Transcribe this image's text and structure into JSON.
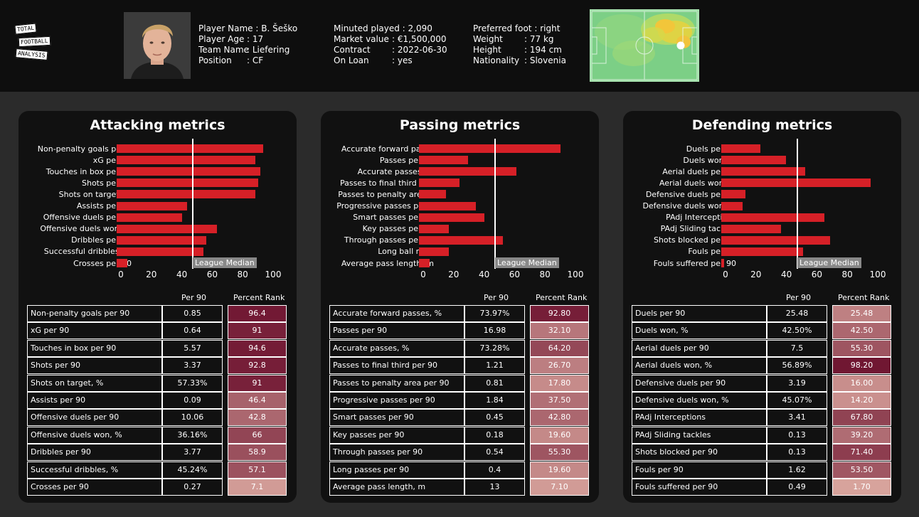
{
  "logo": {
    "lines": [
      "TOTAL",
      "FOOTBALL",
      "ANALYSIS"
    ]
  },
  "player": {
    "col1": [
      {
        "label": "Player Name :",
        "value": "B. Šeško"
      },
      {
        "label": "Player Age",
        "value": ": 17"
      },
      {
        "label": "Team Name",
        "value": ": Liefering"
      },
      {
        "label": "Position",
        "value": ": CF"
      }
    ],
    "col2": [
      {
        "label": "Minuted played :",
        "value": "2,090"
      },
      {
        "label": "Market value",
        "value": ": €1,500,000"
      },
      {
        "label": "Contract",
        "value": ": 2022-06-30"
      },
      {
        "label": "On Loan",
        "value": ": yes"
      }
    ],
    "col3": [
      {
        "label": "Preferred foot :",
        "value": "right"
      },
      {
        "label": "Weight",
        "value": ": 77 kg"
      },
      {
        "label": "Height",
        "value": ": 194 cm"
      },
      {
        "label": "Nationality",
        "value": ": Slovenia"
      }
    ]
  },
  "colors": {
    "bar": "#d62027",
    "background": "#2b2b2b",
    "panel": "#111111",
    "rank_low": "#d9a59e",
    "rank_high": "#6e1430"
  },
  "common": {
    "league_median_label": "League Median",
    "median_value": 50,
    "ticks": [
      "0",
      "20",
      "40",
      "60",
      "80",
      "100"
    ],
    "col_per90": "Per 90",
    "col_rank": "Percent Rank"
  },
  "panels": [
    {
      "title": "Attacking metrics",
      "chart_labels": [
        "Non-penalty goals per ..",
        "xG per 90",
        "Touches in box per 90",
        "Shots per 90",
        "Shots on target, %",
        "Assists per 90",
        "Offensive duels per 90",
        "Offensive duels won, %",
        "Dribbles per 90",
        "Successful dribbles, %",
        "Crosses per 90"
      ],
      "rows": [
        {
          "name": "Non-penalty goals per 90",
          "per90": "0.85",
          "rank": "96.4",
          "pct": 96.4
        },
        {
          "name": "xG per 90",
          "per90": "0.64",
          "rank": "91",
          "pct": 91
        },
        {
          "name": "Touches in box per 90",
          "per90": "5.57",
          "rank": "94.6",
          "pct": 94.6
        },
        {
          "name": "Shots per 90",
          "per90": "3.37",
          "rank": "92.8",
          "pct": 92.8
        },
        {
          "name": "Shots on target, %",
          "per90": "57.33%",
          "rank": "91",
          "pct": 91
        },
        {
          "name": "Assists per 90",
          "per90": "0.09",
          "rank": "46.4",
          "pct": 46.4
        },
        {
          "name": "Offensive duels per 90",
          "per90": "10.06",
          "rank": "42.8",
          "pct": 42.8
        },
        {
          "name": "Offensive duels won, %",
          "per90": "36.16%",
          "rank": "66",
          "pct": 66
        },
        {
          "name": "Dribbles per 90",
          "per90": "3.77",
          "rank": "58.9",
          "pct": 58.9
        },
        {
          "name": "Successful dribbles, %",
          "per90": "45.24%",
          "rank": "57.1",
          "pct": 57.1
        },
        {
          "name": "Crosses per 90",
          "per90": "0.27",
          "rank": "7.1",
          "pct": 7.1
        }
      ]
    },
    {
      "title": "Passing metrics",
      "chart_labels": [
        "Accurate forward pass..",
        "Passes per 90",
        "Accurate passes, %",
        "Passes to final third pe..",
        "Passes to penalty area ..",
        "Progressive passes per ..",
        "Smart passes per 90",
        "Key passes per 90",
        "Through passes per 90",
        "Long ball ratio",
        "Average pass length, m"
      ],
      "rows": [
        {
          "name": "Accurate forward passes, %",
          "per90": "73.97%",
          "rank": "92.80",
          "pct": 92.8
        },
        {
          "name": "Passes per 90",
          "per90": "16.98",
          "rank": "32.10",
          "pct": 32.1
        },
        {
          "name": "Accurate passes, %",
          "per90": "73.28%",
          "rank": "64.20",
          "pct": 64.2
        },
        {
          "name": "Passes to final third per 90",
          "per90": "1.21",
          "rank": "26.70",
          "pct": 26.7
        },
        {
          "name": "Passes to penalty area per 90",
          "per90": "0.81",
          "rank": "17.80",
          "pct": 17.8
        },
        {
          "name": "Progressive passes per 90",
          "per90": "1.84",
          "rank": "37.50",
          "pct": 37.5
        },
        {
          "name": "Smart passes per 90",
          "per90": "0.45",
          "rank": "42.80",
          "pct": 42.8
        },
        {
          "name": "Key passes per 90",
          "per90": "0.18",
          "rank": "19.60",
          "pct": 19.6
        },
        {
          "name": "Through passes per 90",
          "per90": "0.54",
          "rank": "55.30",
          "pct": 55.3
        },
        {
          "name": "Long passes per 90",
          "per90": "0.4",
          "rank": "19.60",
          "pct": 19.6
        },
        {
          "name": "Average pass length, m",
          "per90": "13",
          "rank": "7.10",
          "pct": 7.1
        }
      ]
    },
    {
      "title": "Defending metrics",
      "chart_labels": [
        "Duels per 90",
        "Duels won, %",
        "Aerial duels per 90",
        "Aerial duels won, %",
        "Defensive duels per 90",
        "Defensive duels won, %",
        "PAdj Interceptions",
        "PAdj Sliding tackles",
        "Shots blocked per 90",
        "Fouls per 90",
        "Fouls suffered per 90"
      ],
      "rows": [
        {
          "name": "Duels per 90",
          "per90": "25.48",
          "rank": "25.48",
          "pct": 25.48
        },
        {
          "name": "Duels won, %",
          "per90": "42.50%",
          "rank": "42.50",
          "pct": 42.5
        },
        {
          "name": "Aerial duels per 90",
          "per90": "7.5",
          "rank": "55.30",
          "pct": 55.3
        },
        {
          "name": "Aerial duels won, %",
          "per90": "56.89%",
          "rank": "98.20",
          "pct": 98.2
        },
        {
          "name": "Defensive duels per 90",
          "per90": "3.19",
          "rank": "16.00",
          "pct": 16.0
        },
        {
          "name": "Defensive duels won, %",
          "per90": "45.07%",
          "rank": "14.20",
          "pct": 14.2
        },
        {
          "name": "PAdj Interceptions",
          "per90": "3.41",
          "rank": "67.80",
          "pct": 67.8
        },
        {
          "name": "PAdj Sliding tackles",
          "per90": "0.13",
          "rank": "39.20",
          "pct": 39.2
        },
        {
          "name": "Shots blocked per 90",
          "per90": "0.13",
          "rank": "71.40",
          "pct": 71.4
        },
        {
          "name": "Fouls per 90",
          "per90": "1.62",
          "rank": "53.50",
          "pct": 53.5
        },
        {
          "name": "Fouls suffered per 90",
          "per90": "0.49",
          "rank": "1.70",
          "pct": 1.7
        }
      ]
    }
  ],
  "chart_data": [
    {
      "type": "bar",
      "title": "Attacking metrics",
      "categories": [
        "Non-penalty goals per ..",
        "xG per 90",
        "Touches in box per 90",
        "Shots per 90",
        "Shots on target, %",
        "Assists per 90",
        "Offensive duels per 90",
        "Offensive duels won, %",
        "Dribbles per 90",
        "Successful dribbles, %",
        "Crosses per 90"
      ],
      "values": [
        96.4,
        91,
        94.6,
        92.8,
        91,
        46.4,
        42.8,
        66,
        58.9,
        57.1,
        7.1
      ],
      "xlim": [
        0,
        100
      ],
      "reference_line": {
        "value": 50,
        "label": "League Median"
      }
    },
    {
      "type": "bar",
      "title": "Passing metrics",
      "categories": [
        "Accurate forward pass..",
        "Passes per 90",
        "Accurate passes, %",
        "Passes to final third pe..",
        "Passes to penalty area ..",
        "Progressive passes per ..",
        "Smart passes per 90",
        "Key passes per 90",
        "Through passes per 90",
        "Long ball ratio",
        "Average pass length, m"
      ],
      "values": [
        92.8,
        32.1,
        64.2,
        26.7,
        17.8,
        37.5,
        42.8,
        19.6,
        55.3,
        19.6,
        7.1
      ],
      "xlim": [
        0,
        100
      ],
      "reference_line": {
        "value": 50,
        "label": "League Median"
      }
    },
    {
      "type": "bar",
      "title": "Defending metrics",
      "categories": [
        "Duels per 90",
        "Duels won, %",
        "Aerial duels per 90",
        "Aerial duels won, %",
        "Defensive duels per 90",
        "Defensive duels won, %",
        "PAdj Interceptions",
        "PAdj Sliding tackles",
        "Shots blocked per 90",
        "Fouls per 90",
        "Fouls suffered per 90"
      ],
      "values": [
        25.48,
        42.5,
        55.3,
        98.2,
        16.0,
        14.2,
        67.8,
        39.2,
        71.4,
        53.5,
        1.7
      ],
      "xlim": [
        0,
        100
      ],
      "reference_line": {
        "value": 50,
        "label": "League Median"
      }
    }
  ]
}
